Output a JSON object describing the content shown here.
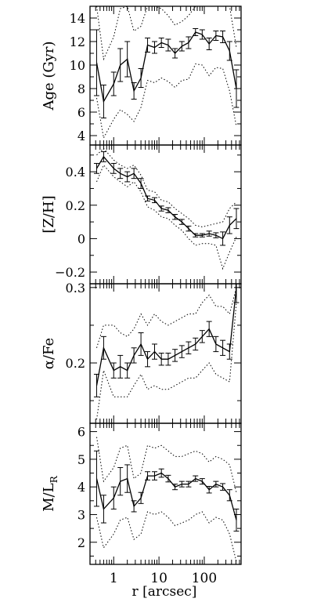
{
  "x_axis": {
    "label": "r [arcsec]",
    "scale": "log",
    "xlim": [
      0.3,
      650
    ],
    "major_ticks": [
      {
        "value": 1,
        "label": "1"
      },
      {
        "value": 10,
        "label": "10"
      },
      {
        "value": 100,
        "label": "100"
      }
    ]
  },
  "chart_data": [
    {
      "type": "line",
      "ylabel": "Age (Gyr)",
      "ylim": [
        3.2,
        15
      ],
      "yticks": [
        {
          "value": 4,
          "label": "4"
        },
        {
          "value": 6,
          "label": "6"
        },
        {
          "value": 8,
          "label": "8"
        },
        {
          "value": 10,
          "label": "10"
        },
        {
          "value": 12,
          "label": "12"
        },
        {
          "value": 14,
          "label": "14"
        }
      ],
      "x": [
        0.42,
        0.6,
        1.0,
        1.4,
        2.0,
        2.8,
        4.0,
        5.6,
        8.0,
        11.3,
        16,
        22.6,
        32,
        45,
        64,
        90,
        128,
        181,
        256,
        362,
        512
      ],
      "y": [
        10.2,
        6.9,
        8.4,
        10.0,
        10.5,
        7.8,
        8.9,
        11.7,
        11.5,
        11.9,
        11.7,
        11.0,
        11.6,
        11.9,
        12.8,
        12.6,
        11.8,
        12.5,
        12.4,
        11.2,
        8.0
      ],
      "yerr": [
        2.8,
        1.4,
        1.0,
        1.4,
        1.5,
        0.7,
        0.8,
        0.6,
        0.5,
        0.4,
        0.5,
        0.4,
        0.4,
        0.5,
        0.3,
        0.4,
        0.5,
        0.4,
        0.5,
        0.8,
        1.6
      ],
      "envelope_upper": [
        15,
        10.5,
        12.4,
        14.8,
        15,
        12.9,
        13.3,
        15,
        15,
        14.8,
        14.2,
        13.4,
        13.7,
        14.2,
        15,
        15,
        15,
        15,
        15,
        15,
        11.5
      ],
      "envelope_lower": [
        7.2,
        3.8,
        5.4,
        6.2,
        5.8,
        5.2,
        6.4,
        8.7,
        8.5,
        8.9,
        8.6,
        8.1,
        8.7,
        8.8,
        10.1,
        10.0,
        9.1,
        9.8,
        9.7,
        7.8,
        4.8
      ]
    },
    {
      "type": "line",
      "ylabel": "[Z/H]",
      "ylim": [
        -0.27,
        0.56
      ],
      "yticks": [
        {
          "value": -0.2,
          "label": "−0.2"
        },
        {
          "value": 0,
          "label": "0"
        },
        {
          "value": 0.2,
          "label": "0.2"
        },
        {
          "value": 0.4,
          "label": "0.4"
        }
      ],
      "x": [
        0.42,
        0.6,
        1.0,
        1.4,
        2.0,
        2.8,
        4.0,
        5.6,
        8.0,
        11.3,
        16,
        22.6,
        32,
        45,
        64,
        90,
        128,
        181,
        256,
        362,
        512
      ],
      "y": [
        0.42,
        0.49,
        0.42,
        0.39,
        0.37,
        0.39,
        0.33,
        0.24,
        0.23,
        0.18,
        0.17,
        0.13,
        0.1,
        0.06,
        0.02,
        0.02,
        0.03,
        0.02,
        0.0,
        0.08,
        0.12
      ],
      "yerr": [
        0.03,
        0.03,
        0.03,
        0.03,
        0.03,
        0.03,
        0.03,
        0.015,
        0.015,
        0.015,
        0.015,
        0.015,
        0.015,
        0.015,
        0.01,
        0.01,
        0.015,
        0.015,
        0.04,
        0.05,
        0.06
      ],
      "envelope_upper": [
        0.5,
        0.54,
        0.47,
        0.44,
        0.42,
        0.44,
        0.38,
        0.29,
        0.28,
        0.23,
        0.22,
        0.18,
        0.15,
        0.12,
        0.08,
        0.07,
        0.08,
        0.09,
        0.1,
        0.18,
        0.22
      ],
      "envelope_lower": [
        0.34,
        0.44,
        0.37,
        0.34,
        0.31,
        0.34,
        0.28,
        0.19,
        0.17,
        0.13,
        0.12,
        0.08,
        0.05,
        0.0,
        -0.04,
        -0.03,
        -0.03,
        -0.04,
        -0.18,
        -0.08,
        0.01
      ]
    },
    {
      "type": "line",
      "ylabel": "α/Fe",
      "ylim": [
        0.12,
        0.305
      ],
      "yticks": [
        {
          "value": 0.2,
          "label": "0.2"
        },
        {
          "value": 0.3,
          "label": "0.3"
        }
      ],
      "x": [
        0.42,
        0.6,
        1.0,
        1.4,
        2.0,
        2.8,
        4.0,
        5.6,
        8.0,
        11.3,
        16,
        22.6,
        32,
        45,
        64,
        90,
        128,
        181,
        256,
        362,
        512
      ],
      "y": [
        0.17,
        0.22,
        0.19,
        0.195,
        0.19,
        0.21,
        0.225,
        0.205,
        0.215,
        0.205,
        0.205,
        0.21,
        0.215,
        0.22,
        0.225,
        0.235,
        0.245,
        0.225,
        0.22,
        0.215,
        0.3
      ],
      "yerr": [
        0.015,
        0.015,
        0.01,
        0.015,
        0.01,
        0.01,
        0.015,
        0.01,
        0.01,
        0.008,
        0.008,
        0.008,
        0.008,
        0.008,
        0.008,
        0.008,
        0.01,
        0.01,
        0.01,
        0.01,
        0.02
      ],
      "envelope_upper": [
        0.22,
        0.25,
        0.25,
        0.24,
        0.235,
        0.245,
        0.265,
        0.25,
        0.265,
        0.255,
        0.25,
        0.255,
        0.26,
        0.265,
        0.265,
        0.28,
        0.29,
        0.275,
        0.275,
        0.265,
        0.3
      ],
      "envelope_lower": [
        0.125,
        0.19,
        0.155,
        0.155,
        0.155,
        0.17,
        0.185,
        0.165,
        0.17,
        0.165,
        0.165,
        0.17,
        0.175,
        0.18,
        0.18,
        0.19,
        0.2,
        0.185,
        0.18,
        0.175,
        0.28
      ]
    },
    {
      "type": "line",
      "ylabel": "M/L",
      "ylabel_sub": "R",
      "ylim": [
        1.2,
        6.3
      ],
      "yticks": [
        {
          "value": 2,
          "label": "2"
        },
        {
          "value": 3,
          "label": "3"
        },
        {
          "value": 4,
          "label": "4"
        },
        {
          "value": 5,
          "label": "5"
        },
        {
          "value": 6,
          "label": "6"
        }
      ],
      "x": [
        0.42,
        0.6,
        1.0,
        1.4,
        2.0,
        2.8,
        4.0,
        5.6,
        8.0,
        11.3,
        16,
        22.6,
        32,
        45,
        64,
        90,
        128,
        181,
        256,
        362,
        512
      ],
      "y": [
        4.3,
        3.2,
        3.6,
        4.2,
        4.3,
        3.3,
        3.6,
        4.4,
        4.4,
        4.5,
        4.3,
        4.0,
        4.1,
        4.1,
        4.3,
        4.2,
        3.9,
        4.1,
        4.0,
        3.7,
        2.8
      ],
      "yerr": [
        1.0,
        0.5,
        0.4,
        0.5,
        0.5,
        0.2,
        0.2,
        0.15,
        0.15,
        0.15,
        0.12,
        0.1,
        0.1,
        0.1,
        0.1,
        0.1,
        0.12,
        0.1,
        0.12,
        0.2,
        0.4
      ],
      "envelope_upper": [
        5.8,
        4.2,
        4.7,
        5.4,
        5.5,
        4.3,
        4.5,
        5.5,
        5.4,
        5.5,
        5.3,
        5.1,
        5.1,
        5.2,
        5.3,
        5.2,
        4.9,
        5.1,
        5.0,
        4.8,
        3.8
      ],
      "envelope_lower": [
        2.9,
        1.8,
        2.3,
        2.8,
        2.9,
        2.1,
        2.3,
        3.1,
        3.0,
        3.1,
        2.9,
        2.6,
        2.7,
        2.8,
        3.0,
        3.1,
        2.7,
        2.9,
        2.8,
        2.3,
        1.3
      ]
    }
  ]
}
